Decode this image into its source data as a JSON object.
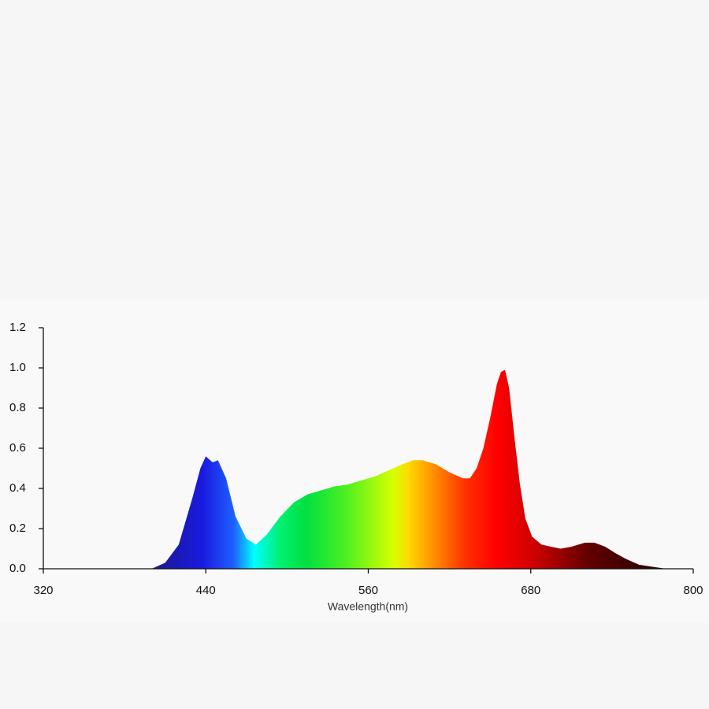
{
  "chart_data": {
    "type": "area",
    "x_label": "Wavelength(nm)",
    "x": [
      400,
      410,
      420,
      430,
      436,
      440,
      445,
      449,
      455,
      462,
      470,
      477,
      485,
      495,
      505,
      515,
      525,
      535,
      545,
      555,
      565,
      575,
      585,
      593,
      600,
      610,
      620,
      630,
      635,
      640,
      645,
      650,
      655,
      658,
      661,
      664,
      668,
      672,
      676,
      681,
      688,
      695,
      702,
      710,
      720,
      727,
      735,
      742,
      750,
      760,
      770,
      780
    ],
    "values": [
      0,
      0.03,
      0.12,
      0.35,
      0.5,
      0.56,
      0.53,
      0.54,
      0.45,
      0.26,
      0.15,
      0.12,
      0.17,
      0.26,
      0.33,
      0.37,
      0.39,
      0.41,
      0.42,
      0.44,
      0.46,
      0.49,
      0.52,
      0.54,
      0.54,
      0.52,
      0.48,
      0.45,
      0.45,
      0.5,
      0.6,
      0.75,
      0.92,
      0.98,
      0.99,
      0.9,
      0.65,
      0.42,
      0.25,
      0.16,
      0.12,
      0.11,
      0.1,
      0.11,
      0.13,
      0.13,
      0.11,
      0.08,
      0.05,
      0.02,
      0.01,
      0
    ],
    "xlim": [
      320,
      800
    ],
    "xticks": [
      320,
      440,
      560,
      680,
      800
    ],
    "ylim": [
      0,
      1.2
    ],
    "yticks": [
      {
        "value": 0,
        "label": "0.0"
      },
      0.2,
      0.4,
      0.6,
      0.8,
      {
        "value": 1,
        "label": "1.0"
      },
      1.2
    ]
  }
}
